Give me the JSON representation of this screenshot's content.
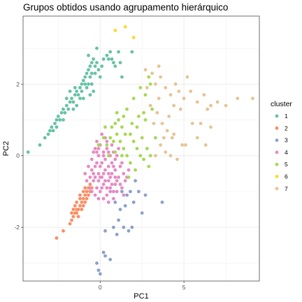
{
  "chart_data": {
    "type": "scatter",
    "title": "Grupos obtidos usando agrupamento hierárquico",
    "xlabel": "PC1",
    "ylabel": "PC2",
    "xlim": [
      -4.6,
      9.5
    ],
    "ylim": [
      -3.5,
      3.9
    ],
    "x_ticks": [
      0,
      5
    ],
    "y_ticks": [
      -2,
      0,
      2
    ],
    "grid": true,
    "legend": {
      "title": "cluster",
      "placement": "right"
    },
    "series": [
      {
        "name": "1",
        "color": "#66C2A5",
        "points": [
          [
            -4.3,
            0.1
          ],
          [
            -3.6,
            0.3
          ],
          [
            -3.3,
            0.5
          ],
          [
            -3.1,
            0.6
          ],
          [
            -2.9,
            0.8
          ],
          [
            -2.8,
            0.7
          ],
          [
            -2.7,
            0.9
          ],
          [
            -2.6,
            1.0
          ],
          [
            -2.5,
            1.1
          ],
          [
            -2.4,
            1.0
          ],
          [
            -2.3,
            1.2
          ],
          [
            -2.2,
            1.3
          ],
          [
            -2.1,
            1.2
          ],
          [
            -2.0,
            1.4
          ],
          [
            -1.9,
            1.3
          ],
          [
            -1.8,
            1.5
          ],
          [
            -1.7,
            1.6
          ],
          [
            -1.6,
            1.5
          ],
          [
            -1.5,
            1.7
          ],
          [
            -1.4,
            1.8
          ],
          [
            -1.3,
            1.7
          ],
          [
            -1.2,
            1.9
          ],
          [
            -1.1,
            2.0
          ],
          [
            -1.0,
            2.1
          ],
          [
            -0.9,
            2.2
          ],
          [
            -0.8,
            2.3
          ],
          [
            -0.7,
            2.4
          ],
          [
            -0.6,
            2.5
          ],
          [
            -0.5,
            2.6
          ],
          [
            -0.4,
            2.7
          ],
          [
            -1.0,
            1.6
          ],
          [
            -0.8,
            1.9
          ],
          [
            -0.6,
            2.2
          ],
          [
            -0.5,
            2.0
          ],
          [
            -0.4,
            1.8
          ],
          [
            -0.3,
            2.3
          ],
          [
            -0.2,
            2.6
          ],
          [
            -0.1,
            2.4
          ],
          [
            0.0,
            2.2
          ],
          [
            0.1,
            2.5
          ],
          [
            0.2,
            2.7
          ],
          [
            0.4,
            2.8
          ],
          [
            0.6,
            2.9
          ],
          [
            0.7,
            2.7
          ],
          [
            1.1,
            2.9
          ],
          [
            0.9,
            2.5
          ],
          [
            -0.7,
            2.8
          ],
          [
            -0.2,
            3.0
          ],
          [
            -1.5,
            1.9
          ],
          [
            -2.0,
            1.6
          ],
          [
            -1.8,
            1.8
          ],
          [
            -1.6,
            1.3
          ],
          [
            -1.4,
            1.4
          ],
          [
            -1.2,
            1.6
          ],
          [
            -1.1,
            1.8
          ],
          [
            -0.9,
            2.0
          ],
          [
            -0.7,
            2.0
          ],
          [
            -0.6,
            1.7
          ],
          [
            -0.5,
            2.3
          ],
          [
            -0.3,
            2.5
          ],
          [
            0.5,
            2.7
          ],
          [
            0.8,
            2.6
          ],
          [
            1.2,
            2.6
          ],
          [
            1.3,
            2.2
          ],
          [
            1.9,
            2.9
          ],
          [
            -2.6,
            0.8
          ],
          [
            -2.2,
            1.0
          ],
          [
            -3.0,
            0.7
          ]
        ]
      },
      {
        "name": "2",
        "color": "#FC8D62",
        "points": [
          [
            -2.6,
            -2.3
          ],
          [
            -2.2,
            -2.1
          ],
          [
            -1.8,
            -1.9
          ],
          [
            -1.7,
            -1.8
          ],
          [
            -1.6,
            -1.7
          ],
          [
            -1.5,
            -1.6
          ],
          [
            -1.4,
            -1.6
          ],
          [
            -1.3,
            -1.5
          ],
          [
            -1.2,
            -1.4
          ],
          [
            -1.1,
            -1.3
          ],
          [
            -1.0,
            -1.2
          ],
          [
            -0.9,
            -1.1
          ],
          [
            -0.8,
            -1.0
          ],
          [
            -0.7,
            -0.9
          ],
          [
            -0.6,
            -0.8
          ],
          [
            -1.4,
            -1.3
          ],
          [
            -1.2,
            -1.1
          ],
          [
            -1.0,
            -1.0
          ],
          [
            -0.9,
            -1.3
          ],
          [
            -0.8,
            -1.2
          ],
          [
            -1.3,
            -1.7
          ],
          [
            -1.1,
            -1.5
          ],
          [
            -1.5,
            -1.4
          ],
          [
            -0.7,
            -1.1
          ],
          [
            -0.5,
            -0.9
          ],
          [
            -1.6,
            -1.5
          ],
          [
            -1.2,
            -1.2
          ],
          [
            -0.9,
            -0.9
          ],
          [
            -1.7,
            -1.6
          ],
          [
            -0.6,
            -1.0
          ],
          [
            -1.0,
            -1.4
          ],
          [
            -1.4,
            -1.5
          ]
        ]
      },
      {
        "name": "3",
        "color": "#8DA0CB",
        "points": [
          [
            -0.1,
            -3.2
          ],
          [
            -0.2,
            -3.0
          ],
          [
            0.0,
            -3.3
          ],
          [
            0.3,
            -2.8
          ],
          [
            0.6,
            -2.9
          ],
          [
            0.2,
            -2.7
          ],
          [
            0.8,
            -2.0
          ],
          [
            1.0,
            -2.2
          ],
          [
            1.4,
            -2.0
          ],
          [
            1.7,
            -2.1
          ],
          [
            1.9,
            -2.0
          ],
          [
            0.3,
            -2.1
          ],
          [
            1.2,
            -1.5
          ],
          [
            1.5,
            -1.4
          ],
          [
            1.8,
            -1.0
          ],
          [
            2.0,
            -1.3
          ],
          [
            2.3,
            -1.0
          ],
          [
            2.7,
            -1.1
          ],
          [
            3.7,
            -1.3
          ],
          [
            2.5,
            -1.6
          ],
          [
            1.1,
            -1.8
          ],
          [
            1.6,
            -1.1
          ],
          [
            2.1,
            -0.7
          ],
          [
            1.3,
            -1.0
          ],
          [
            0.9,
            -1.3
          ]
        ]
      },
      {
        "name": "4",
        "color": "#E78AC3",
        "points": [
          [
            -0.5,
            -0.4
          ],
          [
            -0.3,
            -0.3
          ],
          [
            -0.1,
            -0.5
          ],
          [
            0.1,
            -0.6
          ],
          [
            0.3,
            -0.4
          ],
          [
            0.5,
            -0.7
          ],
          [
            0.7,
            -0.5
          ],
          [
            0.9,
            -0.8
          ],
          [
            1.1,
            -0.6
          ],
          [
            1.3,
            -0.9
          ],
          [
            -0.4,
            -0.7
          ],
          [
            -0.2,
            -0.9
          ],
          [
            0.0,
            -1.0
          ],
          [
            0.2,
            -0.8
          ],
          [
            0.4,
            -1.1
          ],
          [
            0.6,
            -0.9
          ],
          [
            0.8,
            -1.2
          ],
          [
            1.0,
            -1.0
          ],
          [
            -0.6,
            -0.6
          ],
          [
            -0.3,
            -1.1
          ],
          [
            0.1,
            -0.2
          ],
          [
            0.3,
            -0.1
          ],
          [
            0.5,
            -0.3
          ],
          [
            0.7,
            -0.2
          ],
          [
            0.9,
            -0.4
          ],
          [
            1.2,
            -0.3
          ],
          [
            1.4,
            -0.5
          ],
          [
            -0.1,
            0.0
          ],
          [
            0.2,
            0.1
          ],
          [
            0.4,
            0.2
          ],
          [
            0.6,
            0.0
          ],
          [
            0.8,
            0.1
          ],
          [
            -0.2,
            0.4
          ],
          [
            0.1,
            0.6
          ],
          [
            0.3,
            0.5
          ],
          [
            -0.3,
            -0.6
          ],
          [
            0.0,
            -0.3
          ],
          [
            0.5,
            -0.5
          ],
          [
            0.7,
            -0.8
          ],
          [
            1.5,
            -0.7
          ],
          [
            1.7,
            -0.4
          ],
          [
            -0.5,
            -0.1
          ],
          [
            -0.7,
            -0.3
          ],
          [
            -0.4,
            0.1
          ],
          [
            -0.1,
            -0.7
          ],
          [
            0.2,
            -0.5
          ],
          [
            0.6,
            -0.6
          ],
          [
            0.9,
            -0.1
          ],
          [
            1.1,
            0.2
          ],
          [
            -0.6,
            -0.9
          ],
          [
            -0.8,
            -0.7
          ],
          [
            0.4,
            -0.9
          ],
          [
            -0.2,
            -0.2
          ],
          [
            0.0,
            0.3
          ],
          [
            0.8,
            -0.3
          ],
          [
            1.0,
            -0.7
          ],
          [
            1.3,
            -0.2
          ],
          [
            -0.3,
            0.2
          ],
          [
            0.2,
            -1.2
          ],
          [
            0.6,
            -1.0
          ],
          [
            -0.1,
            -1.2
          ],
          [
            0.4,
            0.4
          ],
          [
            1.6,
            -0.6
          ],
          [
            -0.9,
            -0.5
          ],
          [
            0.3,
            -0.7
          ],
          [
            0.7,
            0.3
          ],
          [
            1.0,
            0.0
          ],
          [
            0.5,
            0.1
          ],
          [
            -0.4,
            -0.5
          ],
          [
            0.1,
            -0.9
          ],
          [
            0.9,
            -0.6
          ],
          [
            1.2,
            -0.8
          ],
          [
            -0.2,
            0.1
          ],
          [
            0.0,
            -0.6
          ],
          [
            0.8,
            -1.0
          ],
          [
            0.5,
            -1.3
          ],
          [
            -0.5,
            -1.0
          ],
          [
            1.4,
            -1.1
          ],
          [
            0.2,
            0.0
          ],
          [
            -0.1,
            0.2
          ]
        ]
      },
      {
        "name": "5",
        "color": "#A6D854",
        "points": [
          [
            -0.1,
            0.3
          ],
          [
            0.2,
            0.5
          ],
          [
            0.4,
            0.3
          ],
          [
            0.6,
            0.5
          ],
          [
            0.8,
            0.4
          ],
          [
            1.0,
            0.6
          ],
          [
            1.2,
            0.4
          ],
          [
            1.4,
            0.2
          ],
          [
            1.6,
            0.0
          ],
          [
            1.8,
            -0.2
          ],
          [
            0.7,
            0.8
          ],
          [
            0.9,
            0.9
          ],
          [
            1.1,
            1.0
          ],
          [
            1.3,
            0.8
          ],
          [
            1.5,
            0.6
          ],
          [
            2.0,
            0.4
          ],
          [
            2.2,
            0.2
          ],
          [
            2.4,
            0.0
          ],
          [
            2.6,
            -0.1
          ],
          [
            2.8,
            0.2
          ],
          [
            3.0,
            0.0
          ],
          [
            2.9,
            -0.3
          ],
          [
            1.9,
            0.9
          ],
          [
            2.3,
            1.1
          ],
          [
            2.7,
            1.0
          ],
          [
            3.1,
            1.3
          ],
          [
            1.6,
            1.3
          ],
          [
            2.0,
            1.6
          ],
          [
            2.4,
            1.9
          ],
          [
            2.7,
            1.7
          ],
          [
            2.9,
            2.2
          ],
          [
            3.0,
            2.0
          ],
          [
            2.6,
            1.2
          ],
          [
            2.1,
            -0.4
          ],
          [
            1.7,
            -0.6
          ],
          [
            1.3,
            0.0
          ],
          [
            0.9,
            0.1
          ],
          [
            0.5,
            0.0
          ],
          [
            0.3,
            0.8
          ],
          [
            1.0,
            1.2
          ],
          [
            1.4,
            1.1
          ],
          [
            1.8,
            0.6
          ],
          [
            2.5,
            0.5
          ],
          [
            3.3,
            0.5
          ],
          [
            2.2,
            0.8
          ]
        ]
      },
      {
        "name": "6",
        "color": "#FFD92F",
        "points": [
          [
            0.9,
            3.5
          ],
          [
            1.5,
            3.6
          ],
          [
            2.0,
            3.3
          ]
        ]
      },
      {
        "name": "7",
        "color": "#E5C494",
        "points": [
          [
            2.7,
            2.4
          ],
          [
            3.1,
            2.3
          ],
          [
            3.3,
            2.0
          ],
          [
            3.6,
            2.2
          ],
          [
            3.9,
            1.9
          ],
          [
            4.2,
            1.7
          ],
          [
            4.5,
            2.0
          ],
          [
            4.7,
            1.8
          ],
          [
            5.0,
            1.6
          ],
          [
            5.4,
            1.8
          ],
          [
            5.8,
            1.5
          ],
          [
            6.2,
            1.7
          ],
          [
            6.6,
            1.4
          ],
          [
            7.0,
            1.5
          ],
          [
            7.5,
            1.4
          ],
          [
            8.2,
            1.6
          ],
          [
            9.1,
            1.6
          ],
          [
            3.0,
            1.4
          ],
          [
            3.4,
            1.2
          ],
          [
            3.7,
            0.9
          ],
          [
            4.0,
            0.7
          ],
          [
            4.3,
            0.5
          ],
          [
            3.6,
            0.3
          ],
          [
            3.9,
            0.1
          ],
          [
            4.4,
            0.6
          ],
          [
            5.1,
            0.3
          ],
          [
            5.8,
            0.5
          ],
          [
            6.0,
            0.9
          ],
          [
            6.6,
            0.8
          ],
          [
            4.6,
            -0.1
          ],
          [
            4.9,
            0.3
          ],
          [
            3.5,
            1.6
          ],
          [
            4.1,
            1.1
          ],
          [
            3.8,
            0.5
          ],
          [
            3.2,
            0.9
          ],
          [
            4.8,
            1.3
          ],
          [
            5.5,
            0.9
          ],
          [
            6.3,
            0.3
          ],
          [
            3.3,
            0.0
          ],
          [
            4.2,
            0.0
          ],
          [
            2.8,
            1.9
          ],
          [
            3.5,
            2.5
          ],
          [
            4.4,
            1.4
          ],
          [
            5.2,
            2.2
          ],
          [
            6.4,
            1.3
          ]
        ]
      }
    ]
  }
}
